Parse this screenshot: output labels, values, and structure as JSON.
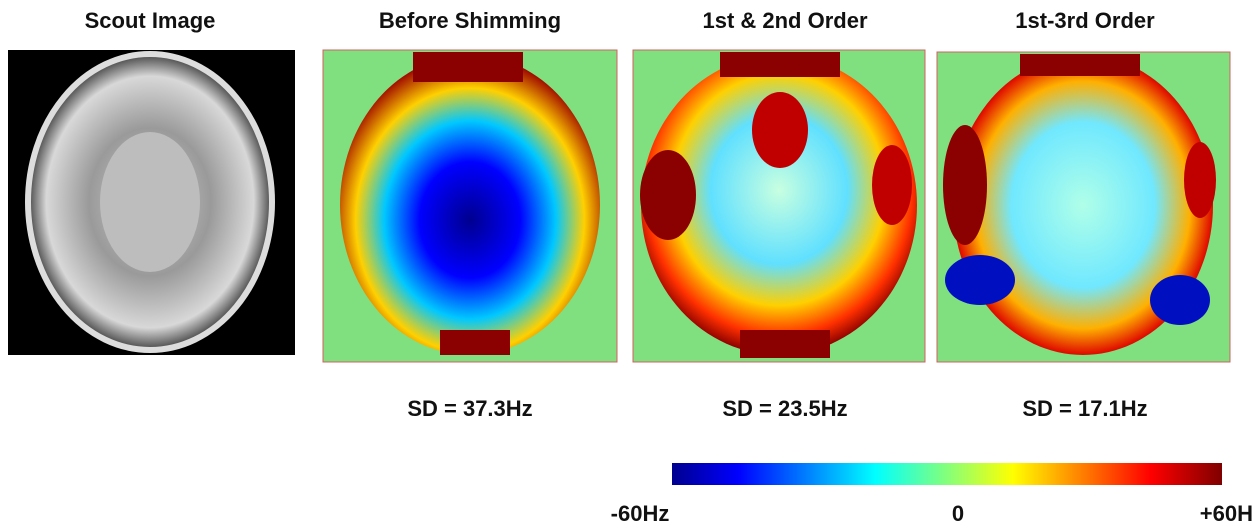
{
  "panels": [
    {
      "title": "Scout Image"
    },
    {
      "title": "Before Shimming",
      "sd": "SD = 37.3Hz"
    },
    {
      "title": "1st & 2nd Order",
      "sd": "SD = 23.5Hz"
    },
    {
      "title": "1st-3rd Order",
      "sd": "SD = 17.1Hz"
    }
  ],
  "colorbar": {
    "min_label": "-60Hz",
    "mid_label": "0",
    "max_label": "+60H"
  }
}
